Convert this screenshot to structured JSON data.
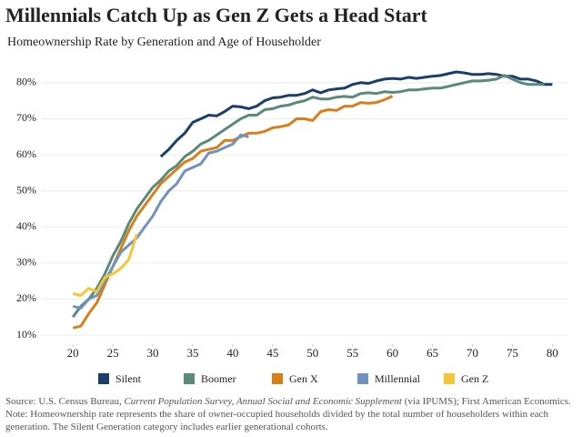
{
  "chart_data": {
    "type": "line",
    "title": "Millennials Catch Up as Gen Z Gets a Head Start",
    "subtitle": "Homeownership Rate by Generation and Age of Householder",
    "x": [
      20,
      21,
      22,
      23,
      24,
      25,
      26,
      27,
      28,
      29,
      30,
      31,
      32,
      33,
      34,
      35,
      36,
      37,
      38,
      39,
      40,
      41,
      42,
      43,
      44,
      45,
      46,
      47,
      48,
      49,
      50,
      51,
      52,
      53,
      54,
      55,
      56,
      57,
      58,
      59,
      60,
      61,
      62,
      63,
      64,
      65,
      66,
      67,
      68,
      69,
      70,
      71,
      72,
      73,
      74,
      75,
      76,
      77,
      78,
      79,
      80
    ],
    "xlim": [
      16,
      82
    ],
    "xticks": [
      20,
      25,
      30,
      35,
      40,
      45,
      50,
      55,
      60,
      65,
      70,
      75,
      80
    ],
    "ylim": [
      7.5,
      84
    ],
    "yticks": [
      {
        "value": 10,
        "label": "10%"
      },
      {
        "value": 20,
        "label": "20%"
      },
      {
        "value": 30,
        "label": "30%"
      },
      {
        "value": 40,
        "label": "40%"
      },
      {
        "value": 50,
        "label": "50%"
      },
      {
        "value": 60,
        "label": "60%"
      },
      {
        "value": 70,
        "label": "70%"
      },
      {
        "value": 80,
        "label": "80%"
      }
    ],
    "grid": true,
    "series": [
      {
        "name": "Silent",
        "color": "#1b3f6b",
        "values": [
          null,
          null,
          null,
          null,
          null,
          null,
          null,
          null,
          null,
          null,
          null,
          59.5,
          61.5,
          64,
          66,
          69,
          70,
          71,
          70.8,
          72,
          73.5,
          73.3,
          72.8,
          73.5,
          75,
          75.8,
          76,
          76.5,
          76.5,
          77,
          78,
          77.2,
          78,
          78.3,
          78.5,
          79.5,
          80,
          79.8,
          80.5,
          81,
          81.2,
          81,
          81.5,
          81.2,
          81.5,
          81.8,
          82,
          82.5,
          83,
          82.7,
          82.3,
          82.3,
          82.5,
          82.3,
          81.8,
          81.8,
          81,
          81,
          80.5,
          79.5,
          79.5
        ]
      },
      {
        "name": "Boomer",
        "color": "#5a8a78",
        "values": [
          15,
          18,
          20,
          23,
          27,
          32,
          36,
          41,
          45,
          48,
          51,
          53,
          55.5,
          57,
          59.5,
          61,
          63,
          64,
          65.5,
          67,
          68.5,
          70,
          71,
          71,
          72.5,
          72.8,
          73.5,
          73.8,
          74.5,
          75,
          76,
          75.5,
          75.5,
          76,
          76.2,
          76,
          77,
          77.2,
          77,
          77.5,
          77.3,
          77.5,
          78,
          78,
          78.3,
          78.5,
          78.5,
          79,
          79.5,
          80,
          80.5,
          80.5,
          80.7,
          81,
          82,
          81,
          80,
          79.5,
          79.5,
          79.5,
          null
        ]
      },
      {
        "name": "Gen X",
        "color": "#d97f1a",
        "values": [
          12,
          12.5,
          16,
          19,
          24,
          29,
          34,
          39,
          43,
          46,
          49,
          52,
          54,
          56,
          58,
          59,
          61,
          61.5,
          62,
          64,
          64,
          65,
          66,
          66,
          66.5,
          67.5,
          67.8,
          68.3,
          70,
          70,
          69.5,
          72,
          72.5,
          72.3,
          73.5,
          73.5,
          74.5,
          74.3,
          74.5,
          75.3,
          76.3,
          null,
          null,
          null,
          null,
          null,
          null,
          null,
          null,
          null,
          null,
          null,
          null,
          null,
          null,
          null,
          null,
          null,
          null,
          null,
          null
        ]
      },
      {
        "name": "Millennial",
        "color": "#7092be",
        "values": [
          18,
          17.5,
          20,
          21,
          25,
          29,
          33,
          35,
          37,
          40,
          43,
          47,
          50,
          52,
          55.5,
          56.5,
          57.5,
          60.5,
          61,
          62,
          63,
          65.5,
          65,
          null,
          null,
          null,
          null,
          null,
          null,
          null,
          null,
          null,
          null,
          null,
          null,
          null,
          null,
          null,
          null,
          null,
          null,
          null,
          null,
          null,
          null,
          null,
          null,
          null,
          null,
          null,
          null,
          null,
          null,
          null,
          null,
          null,
          null,
          null,
          null,
          null,
          null
        ]
      },
      {
        "name": "Gen Z",
        "color": "#f3c73a",
        "values": [
          21.5,
          21,
          23,
          22,
          26,
          27,
          28.5,
          31,
          38,
          null,
          null,
          null,
          null,
          null,
          null,
          null,
          null,
          null,
          null,
          null,
          null,
          null,
          null,
          null,
          null,
          null,
          null,
          null,
          null,
          null,
          null,
          null,
          null,
          null,
          null,
          null,
          null,
          null,
          null,
          null,
          null,
          null,
          null,
          null,
          null,
          null,
          null,
          null,
          null,
          null,
          null,
          null,
          null,
          null,
          null,
          null,
          null,
          null,
          null,
          null,
          null
        ]
      }
    ],
    "source": [
      "Source: U.S. Census Bureau, ",
      "Current Population Survey, Annual Social and Economic Supplement",
      " (via IPUMS); First American Economics. Note: Homeownership rate represents the share of owner-occupied households divided by the total number of householders within each generation. The Silent Generation category includes earlier generational cohorts."
    ]
  }
}
